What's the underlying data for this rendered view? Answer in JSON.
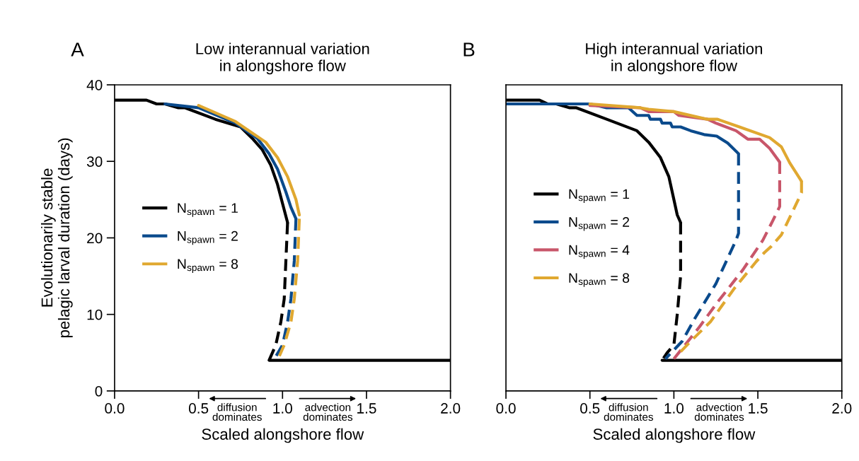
{
  "chart_data": [
    {
      "type": "line",
      "title": "Low interannual variation\nin alongshore flow",
      "xlabel": "Scaled alongshore flow",
      "ylabel": "Evolutionarily stable\npelagic larval duration (days)",
      "annotations": [
        "A",
        "diffusion\ndominates",
        "advection\ndominates"
      ],
      "xlim": [
        0,
        2
      ],
      "xticks": [
        {
          "value": 0,
          "label": "0.0"
        },
        {
          "value": 0.5,
          "label": "0.5"
        },
        {
          "value": 1,
          "label": "1.0"
        },
        {
          "value": 1.5,
          "label": "1.5"
        },
        {
          "value": 2,
          "label": "2.0"
        }
      ],
      "ylim": [
        0,
        40
      ],
      "yticks": [
        0,
        10,
        20,
        30,
        40
      ],
      "grid": false,
      "legend": "center left",
      "marker": "none",
      "series": [
        {
          "name": "N$_{spawn}$ = 1",
          "color": "#000000",
          "line_style": "solid",
          "x": [
            0,
            0.19,
            0.25,
            0.3,
            0.38,
            0.42,
            0.6,
            0.75,
            0.82,
            0.88,
            0.93,
            0.97,
            1.0,
            1.03
          ],
          "values": [
            38,
            38,
            37.5,
            37.5,
            37,
            37,
            35.5,
            34.5,
            33,
            31.5,
            29.5,
            27,
            24.5,
            22
          ]
        },
        {
          "color": "#000000",
          "line_style": "dashed",
          "x": [
            1.03,
            1.02,
            1.01,
            0.99,
            0.96,
            0.92
          ],
          "values": [
            22,
            17,
            12,
            9,
            6,
            4
          ]
        },
        {
          "color": "#000000",
          "line_style": "solid",
          "x": [
            0.92,
            2.0
          ],
          "values": [
            4,
            4
          ]
        },
        {
          "name": "N$_{spawn}$ = 2",
          "color": "#0a4a8c",
          "line_style": "solid",
          "x": [
            0.3,
            0.5,
            0.72,
            0.85,
            0.92,
            0.97,
            1.02,
            1.05,
            1.08
          ],
          "values": [
            37.5,
            37,
            35,
            33,
            31,
            29,
            26,
            24,
            22.5
          ]
        },
        {
          "color": "#0a4a8c",
          "line_style": "dashed",
          "x": [
            1.08,
            1.07,
            1.05,
            1.03,
            1.0,
            0.96
          ],
          "values": [
            22.5,
            17,
            12,
            9,
            6,
            4.5
          ]
        },
        {
          "name": "N$_{spawn}$ = 8",
          "color": "#e0a830",
          "line_style": "solid",
          "x": [
            0.5,
            0.72,
            0.8,
            0.9,
            0.97,
            1.03,
            1.08,
            1.1
          ],
          "values": [
            37.3,
            35.2,
            34,
            32.5,
            30.5,
            28,
            25,
            23
          ]
        },
        {
          "color": "#e0a830",
          "line_style": "dashed",
          "x": [
            1.1,
            1.09,
            1.07,
            1.05,
            1.01,
            0.98
          ],
          "values": [
            22.5,
            17,
            12,
            9,
            6,
            4.5
          ]
        }
      ]
    },
    {
      "type": "line",
      "title": "High interannual variation\nin alongshore flow",
      "xlabel": "Scaled alongshore flow",
      "annotations": [
        "B",
        "diffusion\ndominates",
        "advection\ndominates"
      ],
      "xlim": [
        0,
        2
      ],
      "xticks": [
        {
          "value": 0,
          "label": "0.0"
        },
        {
          "value": 0.5,
          "label": "0.5"
        },
        {
          "value": 1,
          "label": "1.0"
        },
        {
          "value": 1.5,
          "label": "1.5"
        },
        {
          "value": 2,
          "label": "2.0"
        }
      ],
      "ylim": [
        0,
        40
      ],
      "tick_labels": "x",
      "grid": false,
      "legend": "center left",
      "marker": "none",
      "series": [
        {
          "name": "N$_{spawn}$ = 1",
          "color": "#000000",
          "line_style": "solid",
          "x": [
            0,
            0.2,
            0.25,
            0.3,
            0.38,
            0.42,
            0.6,
            0.78,
            0.85,
            0.92,
            0.97,
            1.0,
            1.02,
            1.04
          ],
          "values": [
            38,
            38,
            37.5,
            37.5,
            37,
            37,
            35.5,
            34,
            32.5,
            30.5,
            28,
            25,
            23,
            22
          ]
        },
        {
          "color": "#000000",
          "line_style": "dashed",
          "x": [
            1.04,
            1.04,
            1.02,
            1.0,
            0.96,
            0.93
          ],
          "values": [
            22,
            15,
            10,
            6,
            5,
            4
          ]
        },
        {
          "color": "#000000",
          "line_style": "solid",
          "x": [
            0.93,
            2.0
          ],
          "values": [
            4,
            4
          ]
        },
        {
          "name": "N$_{spawn}$ = 2",
          "color": "#0a4a8c",
          "line_style": "solid",
          "x": [
            0,
            0.5,
            0.6,
            0.73,
            0.78,
            0.85,
            0.86,
            0.92,
            0.93,
            0.98,
            0.99,
            1.04,
            1.1,
            1.18,
            1.255,
            1.32,
            1.385
          ],
          "values": [
            37.5,
            37.5,
            37,
            37,
            36,
            36,
            35.5,
            35.5,
            35,
            35,
            34.5,
            34.5,
            34,
            33.5,
            33.3,
            32.4,
            31
          ]
        },
        {
          "color": "#0a4a8c",
          "line_style": "dashed",
          "x": [
            1.385,
            1.385,
            1.37,
            1.25,
            1.12,
            1.05,
            0.95
          ],
          "values": [
            31,
            20.6,
            19.7,
            14,
            9.3,
            6.5,
            4.2
          ]
        },
        {
          "name": "N$_{spawn}$ = 4",
          "color": "#c8566a",
          "line_style": "solid",
          "x": [
            0.5,
            0.8,
            0.85,
            1.0,
            1.03,
            1.2,
            1.25,
            1.37,
            1.44,
            1.51,
            1.57,
            1.63
          ],
          "values": [
            37.3,
            37,
            36.5,
            36.5,
            36,
            35.5,
            35,
            34,
            32.9,
            32.9,
            31.7,
            29.9
          ]
        },
        {
          "color": "#c8566a",
          "line_style": "dashed",
          "x": [
            1.63,
            1.63,
            1.59,
            1.53,
            1.41,
            1.26,
            1.15,
            1.07,
            1.0
          ],
          "values": [
            29.9,
            24.1,
            22.3,
            19.7,
            15.8,
            11.6,
            8.3,
            6.1,
            4.2
          ]
        },
        {
          "name": "N$_{spawn}$ = 8",
          "color": "#e0a830",
          "line_style": "solid",
          "x": [
            0.5,
            0.8,
            0.85,
            1.0,
            1.2,
            1.26,
            1.39,
            1.57,
            1.64,
            1.69,
            1.76
          ],
          "values": [
            37.5,
            37,
            36.8,
            36.5,
            35.5,
            35.5,
            34.5,
            33.1,
            31.9,
            29.8,
            27.4
          ]
        },
        {
          "color": "#e0a830",
          "line_style": "dashed",
          "x": [
            1.76,
            1.76,
            1.73,
            1.64,
            1.58,
            1.54,
            1.49,
            1.36,
            1.22,
            1.11,
            1.03
          ],
          "values": [
            27.4,
            25.9,
            24.5,
            20.4,
            18.9,
            18.1,
            16.9,
            13.4,
            9.1,
            6.7,
            4.9
          ]
        }
      ]
    }
  ]
}
